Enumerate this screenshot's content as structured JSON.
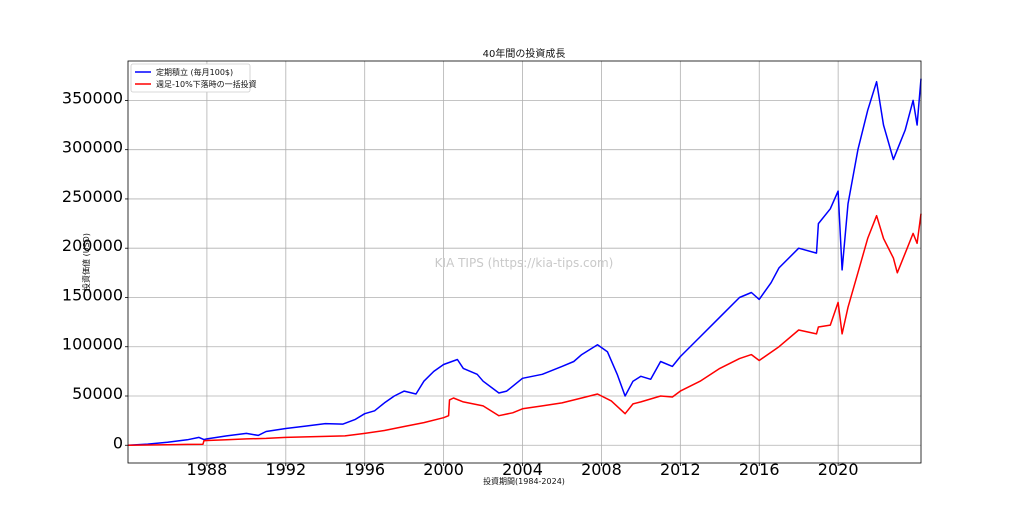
{
  "chart_data": {
    "type": "line",
    "title": "40年間の投資成長",
    "xlabel": "投資期間(1984-2024)",
    "ylabel": "投資価値 (USD)",
    "watermark": "KIA TIPS (https://kia-tips.com)",
    "xlim": [
      1984.0,
      2024.2
    ],
    "ylim": [
      -18000,
      390000
    ],
    "x_ticks": [
      1988,
      1992,
      1996,
      2000,
      2004,
      2008,
      2012,
      2016,
      2020
    ],
    "x_tick_labels": [
      "1988",
      "1992",
      "1996",
      "2000",
      "2004",
      "2008",
      "2012",
      "2016",
      "2020"
    ],
    "y_ticks": [
      0,
      50000,
      100000,
      150000,
      200000,
      250000,
      300000,
      350000
    ],
    "y_tick_labels": [
      "0",
      "50000",
      "100000",
      "150000",
      "200000",
      "250000",
      "300000",
      "350000"
    ],
    "grid": true,
    "legend_position": "upper-left",
    "series": [
      {
        "name": "定期積立 (毎月100$)",
        "color": "#0000ff",
        "x": [
          1984.0,
          1985.0,
          1986.0,
          1987.0,
          1987.6,
          1987.85,
          1988.0,
          1989.0,
          1990.0,
          1990.6,
          1991.0,
          1992.0,
          1993.0,
          1994.0,
          1994.9,
          1995.5,
          1996.0,
          1996.5,
          1997.0,
          1997.5,
          1998.0,
          1998.6,
          1999.0,
          1999.5,
          2000.0,
          2000.7,
          2001.0,
          2001.7,
          2002.0,
          2002.8,
          2003.2,
          2004.0,
          2005.0,
          2006.0,
          2006.6,
          2007.0,
          2007.8,
          2008.3,
          2008.8,
          2009.2,
          2009.6,
          2010.0,
          2010.5,
          2011.0,
          2011.6,
          2012.0,
          2013.0,
          2014.0,
          2015.0,
          2015.6,
          2016.0,
          2016.6,
          2017.0,
          2018.0,
          2018.9,
          2019.0,
          2019.6,
          2020.0,
          2020.2,
          2020.5,
          2021.0,
          2021.5,
          2021.95,
          2022.3,
          2022.8,
          2023.0,
          2023.4,
          2023.8,
          2024.0,
          2024.2
        ],
        "y": [
          0,
          1200,
          3000,
          5500,
          8000,
          5800,
          6500,
          9500,
          12000,
          10000,
          14000,
          17000,
          19500,
          22000,
          21500,
          26000,
          32000,
          35000,
          43000,
          50000,
          55000,
          52000,
          65000,
          75000,
          82000,
          87000,
          78000,
          72000,
          65000,
          53000,
          55000,
          68000,
          72000,
          80000,
          85000,
          92000,
          102000,
          95000,
          72000,
          50000,
          65000,
          70000,
          67000,
          85000,
          80000,
          90000,
          110000,
          130000,
          150000,
          155000,
          148000,
          165000,
          180000,
          200000,
          195000,
          225000,
          240000,
          258000,
          178000,
          245000,
          300000,
          340000,
          369000,
          325000,
          290000,
          300000,
          320000,
          350000,
          325000,
          372000
        ]
      },
      {
        "name": "週足-10%下落時の一括投資",
        "color": "#ff0000",
        "x": [
          1984.0,
          1985.0,
          1986.0,
          1987.0,
          1987.8,
          1987.85,
          1988.0,
          1989.0,
          1990.0,
          1991.0,
          1992.0,
          1993.0,
          1994.0,
          1995.0,
          1996.0,
          1997.0,
          1998.0,
          1999.0,
          2000.0,
          2000.25,
          2000.3,
          2000.5,
          2001.0,
          2002.0,
          2002.8,
          2003.5,
          2004.0,
          2005.0,
          2006.0,
          2007.0,
          2007.8,
          2008.5,
          2009.2,
          2009.6,
          2010.0,
          2011.0,
          2011.6,
          2012.0,
          2013.0,
          2014.0,
          2015.0,
          2015.6,
          2016.0,
          2017.0,
          2018.0,
          2018.9,
          2019.0,
          2019.6,
          2020.0,
          2020.2,
          2020.5,
          2021.0,
          2021.5,
          2021.95,
          2022.3,
          2022.8,
          2023.0,
          2023.5,
          2023.8,
          2024.0,
          2024.2
        ],
        "y": [
          0,
          300,
          600,
          900,
          1100,
          4500,
          4800,
          5500,
          6500,
          7000,
          8000,
          8500,
          9000,
          9500,
          12000,
          15000,
          19000,
          23000,
          28000,
          30000,
          46000,
          48000,
          44000,
          40000,
          30000,
          33000,
          37000,
          40000,
          43000,
          48000,
          52000,
          45000,
          32000,
          42000,
          44000,
          50000,
          49000,
          55000,
          65000,
          78000,
          88000,
          92000,
          86000,
          100000,
          117000,
          113000,
          120000,
          122000,
          145000,
          113000,
          140000,
          175000,
          210000,
          233000,
          210000,
          190000,
          175000,
          200000,
          215000,
          205000,
          235000
        ]
      }
    ]
  }
}
